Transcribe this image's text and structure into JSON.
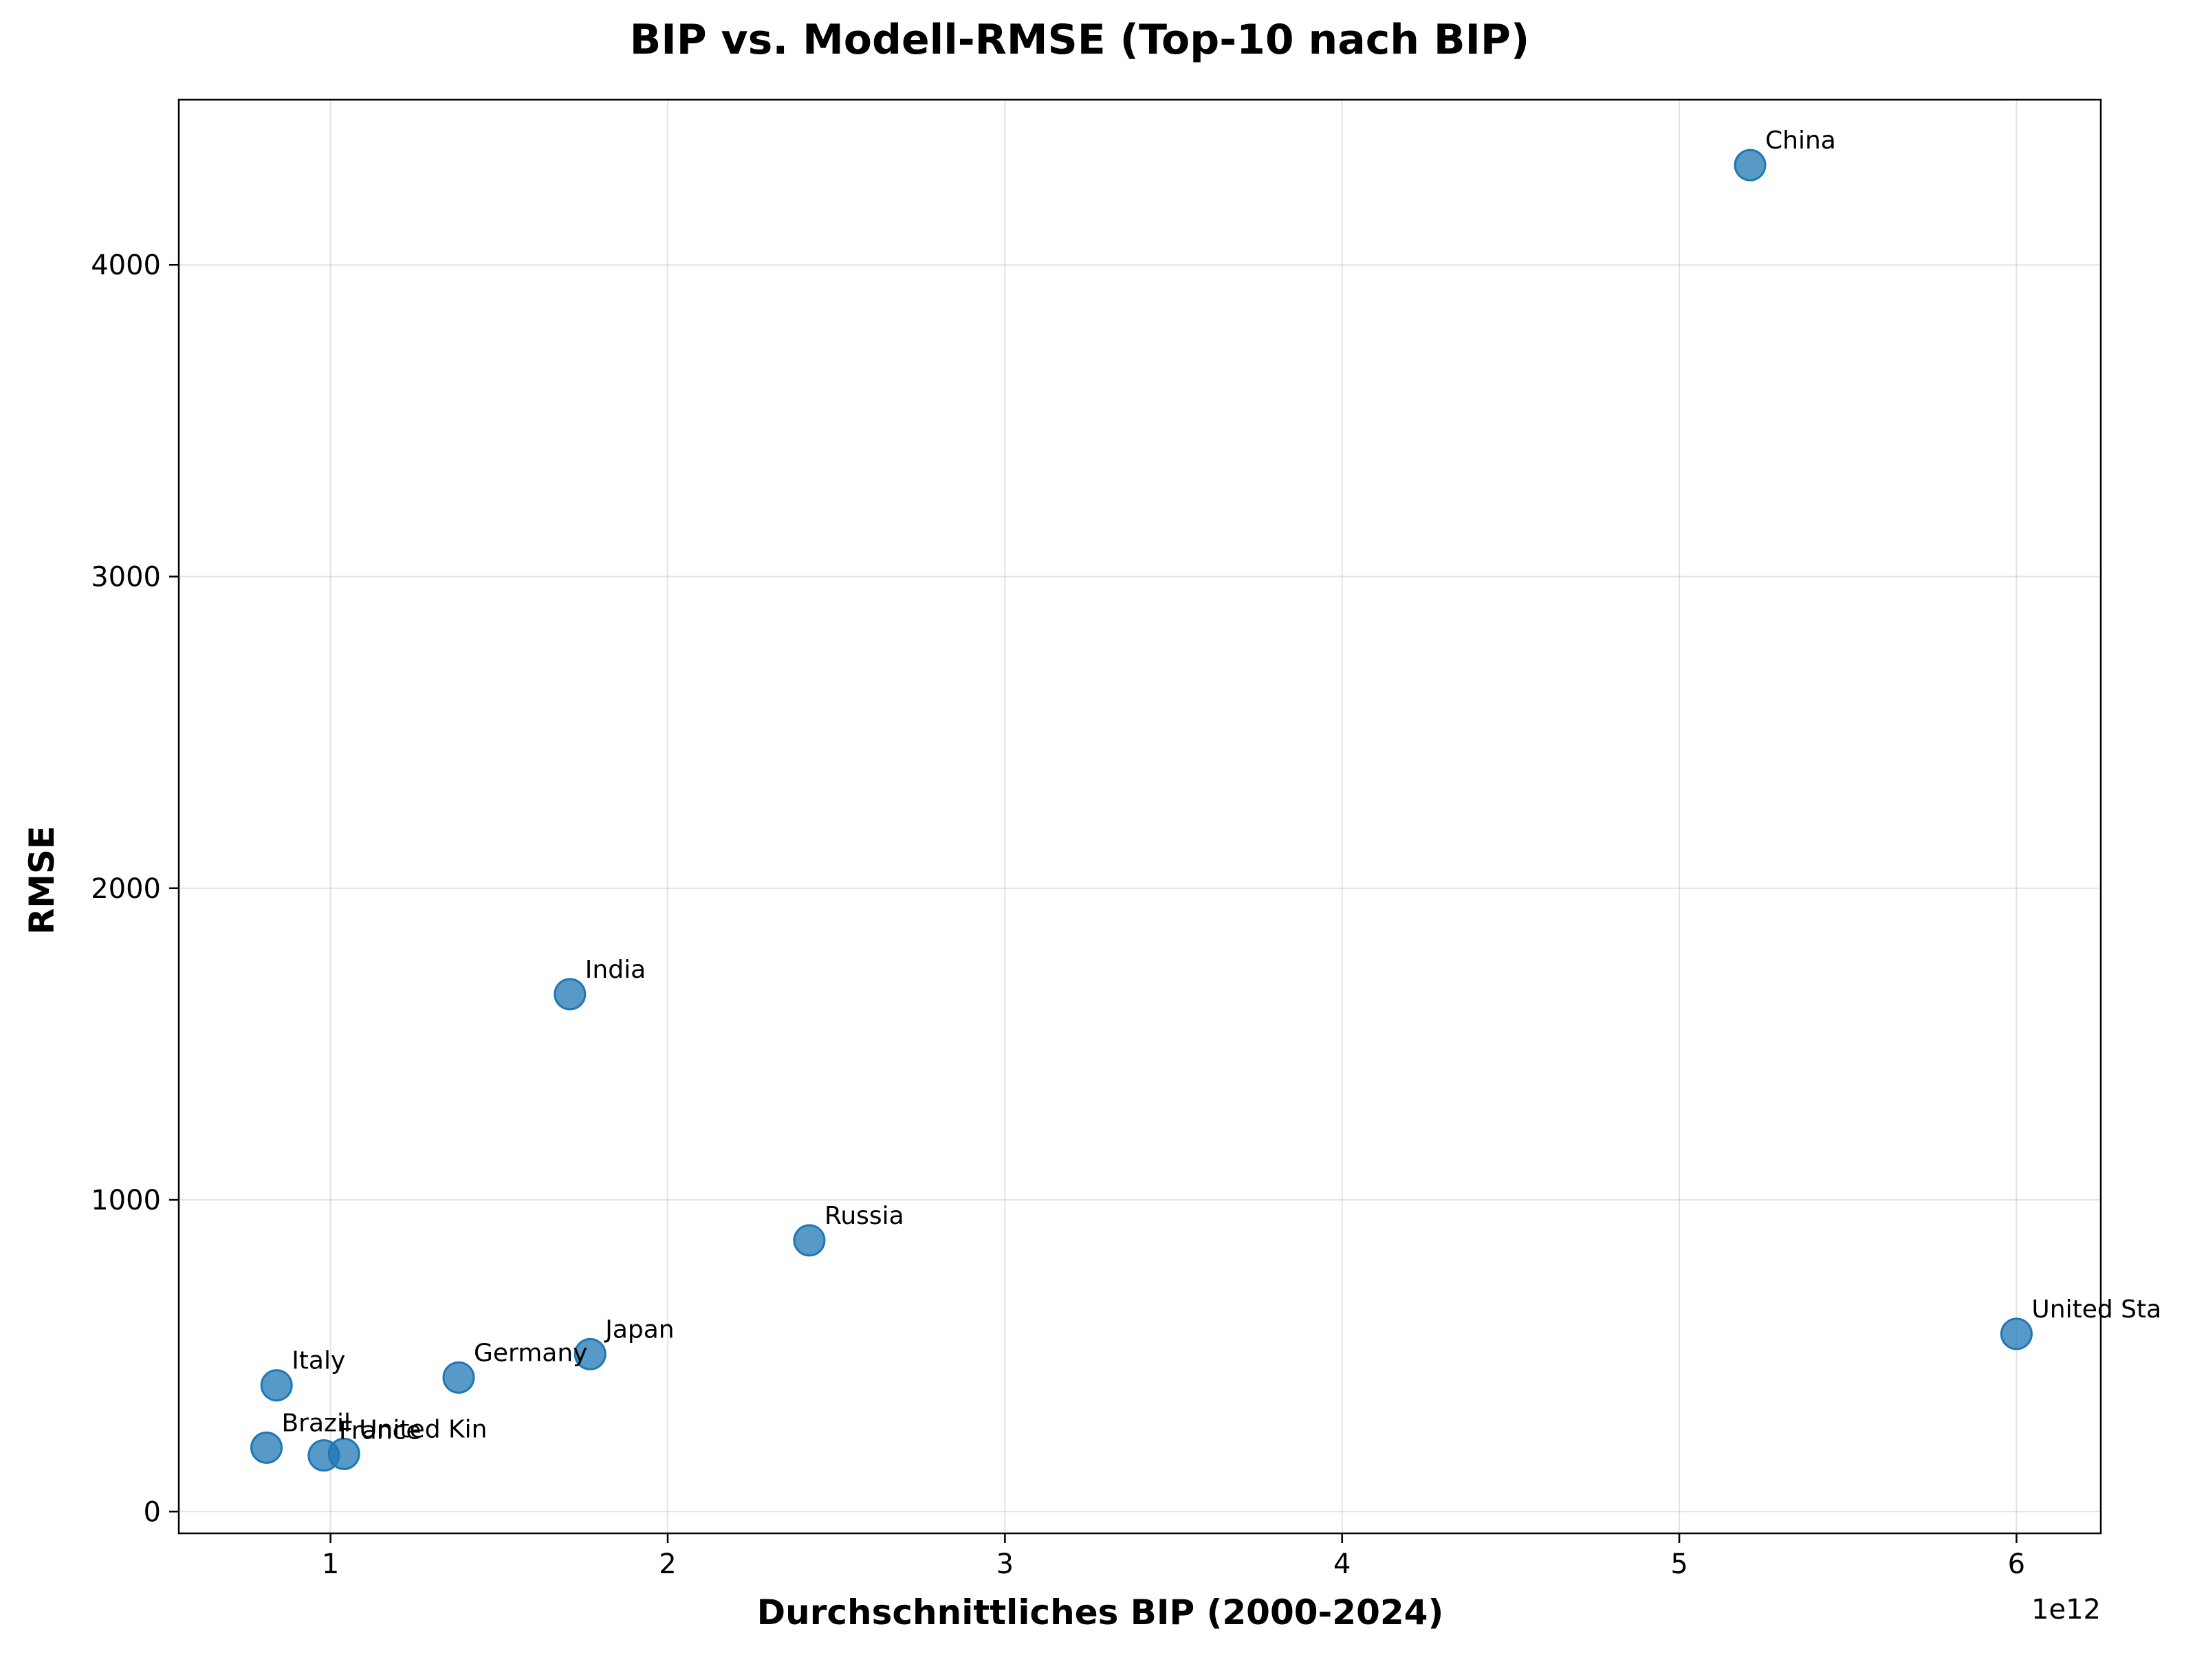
{
  "chart_data": {
    "type": "scatter",
    "title": "BIP vs. Modell-RMSE (Top-10 nach BIP)",
    "xlabel": "Durchschnittliches BIP (2000-2024)",
    "ylabel": "RMSE",
    "x_offset_label": "1e12",
    "xlim": [
      0.55,
      6.25
    ],
    "ylim": [
      -70,
      4530
    ],
    "x_ticks": [
      1,
      2,
      3,
      4,
      5,
      6
    ],
    "y_ticks": [
      0,
      1000,
      2000,
      3000,
      4000
    ],
    "grid": true,
    "marker_color": "#1f77b4",
    "points": [
      {
        "label": "China",
        "x": 5.21,
        "y": 4320
      },
      {
        "label": "India",
        "x": 1.71,
        "y": 1660
      },
      {
        "label": "Russia",
        "x": 2.42,
        "y": 870
      },
      {
        "label": "United Sta",
        "x": 6.0,
        "y": 570
      },
      {
        "label": "Japan",
        "x": 1.77,
        "y": 505
      },
      {
        "label": "Germany",
        "x": 1.38,
        "y": 430
      },
      {
        "label": "Italy",
        "x": 0.84,
        "y": 405
      },
      {
        "label": "Brazil",
        "x": 0.81,
        "y": 205
      },
      {
        "label": "France",
        "x": 0.98,
        "y": 180
      },
      {
        "label": "United Kin",
        "x": 1.04,
        "y": 185
      }
    ]
  }
}
